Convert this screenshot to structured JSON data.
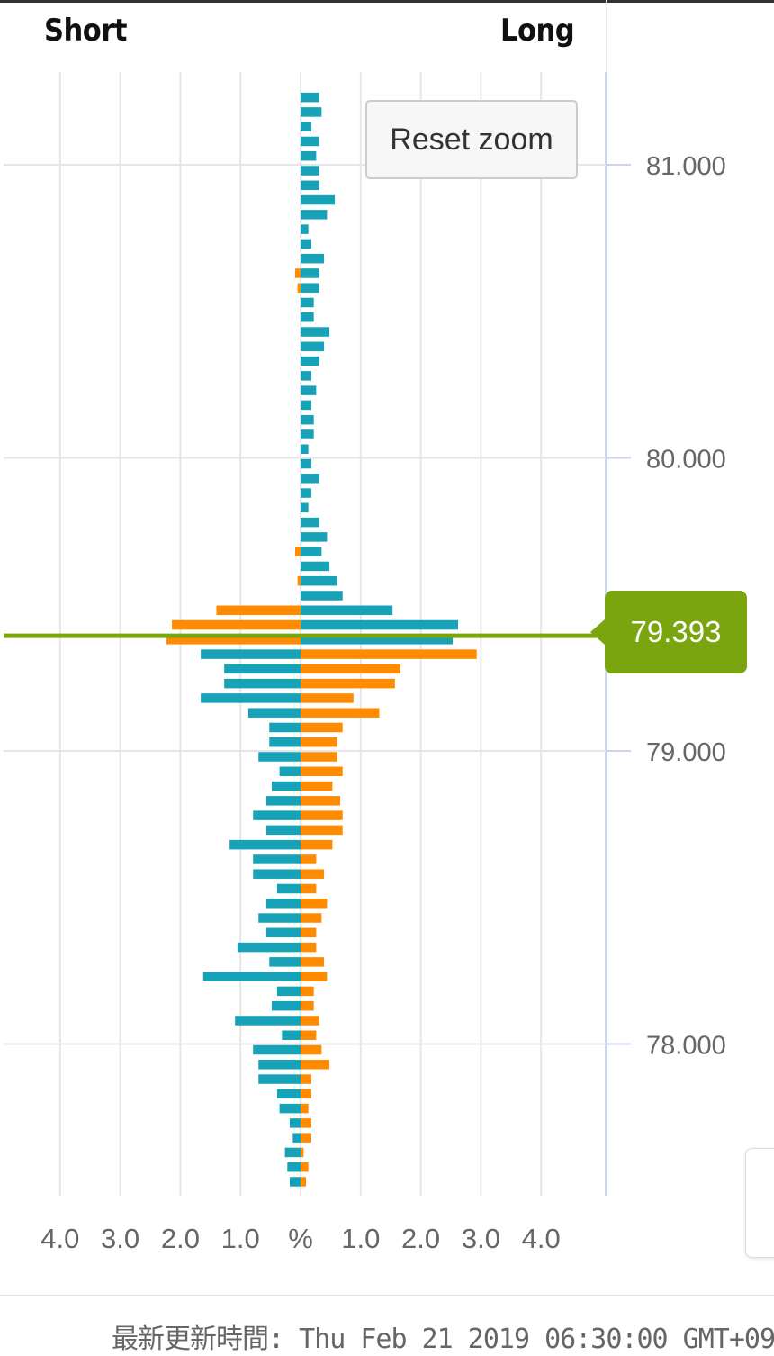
{
  "header": {
    "short_label": "Short",
    "long_label": "Long"
  },
  "reset_button": "Reset zoom",
  "current_price": "79.393",
  "footer": {
    "updated_label": "最新更新時間: Thu Feb 21 2019 06:30:00 GMT+09"
  },
  "colors": {
    "teal": "#17a2b8",
    "orange": "#ff8c00",
    "price_line": "#7aa50f"
  },
  "chart_data": {
    "type": "bar",
    "orientation": "horizontal-diverging",
    "y_axis_ticks": [
      "81.000",
      "80.000",
      "79.000",
      "78.000"
    ],
    "x_axis_ticks": [
      "4.0",
      "3.0",
      "2.0",
      "1.0",
      "%",
      "1.0",
      "2.0",
      "3.0",
      "4.0"
    ],
    "ylim": [
      77.46,
      81.28
    ],
    "xlim_percent": [
      -5.0,
      5.0
    ],
    "current_price_value": 79.393,
    "series_description": "Each row is a price level; left side = short %, right side = long %.",
    "rows": [
      {
        "price": 81.23,
        "short": 0.0,
        "long": 0.31,
        "short_color": "teal",
        "long_color": "teal"
      },
      {
        "price": 81.18,
        "short": 0.0,
        "long": 0.35,
        "short_color": "teal",
        "long_color": "teal"
      },
      {
        "price": 81.13,
        "short": 0.0,
        "long": 0.18,
        "short_color": "teal",
        "long_color": "teal"
      },
      {
        "price": 81.08,
        "short": 0.0,
        "long": 0.31,
        "short_color": "teal",
        "long_color": "teal"
      },
      {
        "price": 81.03,
        "short": 0.0,
        "long": 0.26,
        "short_color": "teal",
        "long_color": "teal"
      },
      {
        "price": 80.98,
        "short": 0.0,
        "long": 0.31,
        "short_color": "teal",
        "long_color": "teal"
      },
      {
        "price": 80.93,
        "short": 0.0,
        "long": 0.31,
        "short_color": "teal",
        "long_color": "teal"
      },
      {
        "price": 80.88,
        "short": 0.0,
        "long": 0.57,
        "short_color": "teal",
        "long_color": "teal"
      },
      {
        "price": 80.83,
        "short": 0.0,
        "long": 0.44,
        "short_color": "teal",
        "long_color": "teal"
      },
      {
        "price": 80.78,
        "short": 0.0,
        "long": 0.13,
        "short_color": "teal",
        "long_color": "teal"
      },
      {
        "price": 80.73,
        "short": 0.0,
        "long": 0.18,
        "short_color": "teal",
        "long_color": "teal"
      },
      {
        "price": 80.68,
        "short": 0.0,
        "long": 0.39,
        "short_color": "teal",
        "long_color": "teal"
      },
      {
        "price": 80.63,
        "short": 0.09,
        "long": 0.31,
        "short_color": "orange",
        "long_color": "teal"
      },
      {
        "price": 80.58,
        "short": 0.05,
        "long": 0.31,
        "short_color": "orange",
        "long_color": "teal"
      },
      {
        "price": 80.53,
        "short": 0.0,
        "long": 0.22,
        "short_color": "teal",
        "long_color": "teal"
      },
      {
        "price": 80.48,
        "short": 0.0,
        "long": 0.22,
        "short_color": "teal",
        "long_color": "teal"
      },
      {
        "price": 80.43,
        "short": 0.0,
        "long": 0.48,
        "short_color": "teal",
        "long_color": "teal"
      },
      {
        "price": 80.38,
        "short": 0.0,
        "long": 0.39,
        "short_color": "teal",
        "long_color": "teal"
      },
      {
        "price": 80.33,
        "short": 0.0,
        "long": 0.31,
        "short_color": "teal",
        "long_color": "teal"
      },
      {
        "price": 80.28,
        "short": 0.0,
        "long": 0.18,
        "short_color": "teal",
        "long_color": "teal"
      },
      {
        "price": 80.23,
        "short": 0.0,
        "long": 0.26,
        "short_color": "teal",
        "long_color": "teal"
      },
      {
        "price": 80.18,
        "short": 0.0,
        "long": 0.18,
        "short_color": "teal",
        "long_color": "teal"
      },
      {
        "price": 80.13,
        "short": 0.0,
        "long": 0.22,
        "short_color": "teal",
        "long_color": "teal"
      },
      {
        "price": 80.08,
        "short": 0.0,
        "long": 0.22,
        "short_color": "teal",
        "long_color": "teal"
      },
      {
        "price": 80.03,
        "short": 0.0,
        "long": 0.13,
        "short_color": "teal",
        "long_color": "teal"
      },
      {
        "price": 79.98,
        "short": 0.0,
        "long": 0.18,
        "short_color": "teal",
        "long_color": "teal"
      },
      {
        "price": 79.93,
        "short": 0.0,
        "long": 0.31,
        "short_color": "teal",
        "long_color": "teal"
      },
      {
        "price": 79.88,
        "short": 0.0,
        "long": 0.18,
        "short_color": "teal",
        "long_color": "teal"
      },
      {
        "price": 79.83,
        "short": 0.0,
        "long": 0.13,
        "short_color": "teal",
        "long_color": "teal"
      },
      {
        "price": 79.78,
        "short": 0.0,
        "long": 0.31,
        "short_color": "teal",
        "long_color": "teal"
      },
      {
        "price": 79.73,
        "short": 0.0,
        "long": 0.44,
        "short_color": "teal",
        "long_color": "teal"
      },
      {
        "price": 79.68,
        "short": 0.09,
        "long": 0.35,
        "short_color": "orange",
        "long_color": "teal"
      },
      {
        "price": 79.63,
        "short": 0.0,
        "long": 0.48,
        "short_color": "teal",
        "long_color": "teal"
      },
      {
        "price": 79.58,
        "short": 0.05,
        "long": 0.61,
        "short_color": "orange",
        "long_color": "teal"
      },
      {
        "price": 79.53,
        "short": 0.0,
        "long": 0.7,
        "short_color": "teal",
        "long_color": "teal"
      },
      {
        "price": 79.48,
        "short": 1.4,
        "long": 1.53,
        "short_color": "orange",
        "long_color": "teal"
      },
      {
        "price": 79.43,
        "short": 2.14,
        "long": 2.62,
        "short_color": "orange",
        "long_color": "teal"
      },
      {
        "price": 79.38,
        "short": 2.23,
        "long": 2.53,
        "short_color": "orange",
        "long_color": "teal"
      },
      {
        "price": 79.33,
        "short": 1.66,
        "long": 2.93,
        "short_color": "teal",
        "long_color": "orange"
      },
      {
        "price": 79.28,
        "short": 1.27,
        "long": 1.66,
        "short_color": "teal",
        "long_color": "orange"
      },
      {
        "price": 79.23,
        "short": 1.27,
        "long": 1.57,
        "short_color": "teal",
        "long_color": "orange"
      },
      {
        "price": 79.18,
        "short": 1.66,
        "long": 0.88,
        "short_color": "teal",
        "long_color": "orange"
      },
      {
        "price": 79.13,
        "short": 0.87,
        "long": 1.31,
        "short_color": "teal",
        "long_color": "orange"
      },
      {
        "price": 79.08,
        "short": 0.52,
        "long": 0.7,
        "short_color": "teal",
        "long_color": "orange"
      },
      {
        "price": 79.03,
        "short": 0.52,
        "long": 0.61,
        "short_color": "teal",
        "long_color": "orange"
      },
      {
        "price": 78.98,
        "short": 0.7,
        "long": 0.61,
        "short_color": "teal",
        "long_color": "orange"
      },
      {
        "price": 78.93,
        "short": 0.35,
        "long": 0.7,
        "short_color": "teal",
        "long_color": "orange"
      },
      {
        "price": 78.88,
        "short": 0.48,
        "long": 0.53,
        "short_color": "teal",
        "long_color": "orange"
      },
      {
        "price": 78.83,
        "short": 0.57,
        "long": 0.66,
        "short_color": "teal",
        "long_color": "orange"
      },
      {
        "price": 78.78,
        "short": 0.79,
        "long": 0.7,
        "short_color": "teal",
        "long_color": "orange"
      },
      {
        "price": 78.73,
        "short": 0.57,
        "long": 0.7,
        "short_color": "teal",
        "long_color": "orange"
      },
      {
        "price": 78.68,
        "short": 1.18,
        "long": 0.53,
        "short_color": "teal",
        "long_color": "orange"
      },
      {
        "price": 78.63,
        "short": 0.79,
        "long": 0.26,
        "short_color": "teal",
        "long_color": "orange"
      },
      {
        "price": 78.58,
        "short": 0.79,
        "long": 0.39,
        "short_color": "teal",
        "long_color": "orange"
      },
      {
        "price": 78.53,
        "short": 0.39,
        "long": 0.26,
        "short_color": "teal",
        "long_color": "orange"
      },
      {
        "price": 78.48,
        "short": 0.57,
        "long": 0.44,
        "short_color": "teal",
        "long_color": "orange"
      },
      {
        "price": 78.43,
        "short": 0.7,
        "long": 0.35,
        "short_color": "teal",
        "long_color": "orange"
      },
      {
        "price": 78.38,
        "short": 0.57,
        "long": 0.26,
        "short_color": "teal",
        "long_color": "orange"
      },
      {
        "price": 78.33,
        "short": 1.05,
        "long": 0.26,
        "short_color": "teal",
        "long_color": "orange"
      },
      {
        "price": 78.28,
        "short": 0.52,
        "long": 0.39,
        "short_color": "teal",
        "long_color": "orange"
      },
      {
        "price": 78.23,
        "short": 1.62,
        "long": 0.44,
        "short_color": "teal",
        "long_color": "orange"
      },
      {
        "price": 78.18,
        "short": 0.39,
        "long": 0.22,
        "short_color": "teal",
        "long_color": "orange"
      },
      {
        "price": 78.13,
        "short": 0.48,
        "long": 0.22,
        "short_color": "teal",
        "long_color": "orange"
      },
      {
        "price": 78.08,
        "short": 1.09,
        "long": 0.31,
        "short_color": "teal",
        "long_color": "orange"
      },
      {
        "price": 78.03,
        "short": 0.31,
        "long": 0.26,
        "short_color": "teal",
        "long_color": "orange"
      },
      {
        "price": 77.98,
        "short": 0.79,
        "long": 0.35,
        "short_color": "teal",
        "long_color": "orange"
      },
      {
        "price": 77.93,
        "short": 0.7,
        "long": 0.48,
        "short_color": "teal",
        "long_color": "orange"
      },
      {
        "price": 77.88,
        "short": 0.7,
        "long": 0.18,
        "short_color": "teal",
        "long_color": "orange"
      },
      {
        "price": 77.83,
        "short": 0.39,
        "long": 0.18,
        "short_color": "teal",
        "long_color": "orange"
      },
      {
        "price": 77.78,
        "short": 0.35,
        "long": 0.13,
        "short_color": "teal",
        "long_color": "orange"
      },
      {
        "price": 77.73,
        "short": 0.18,
        "long": 0.18,
        "short_color": "teal",
        "long_color": "orange"
      },
      {
        "price": 77.68,
        "short": 0.13,
        "long": 0.18,
        "short_color": "teal",
        "long_color": "orange"
      },
      {
        "price": 77.63,
        "short": 0.26,
        "long": 0.05,
        "short_color": "teal",
        "long_color": "orange"
      },
      {
        "price": 77.58,
        "short": 0.22,
        "long": 0.13,
        "short_color": "teal",
        "long_color": "orange"
      },
      {
        "price": 77.53,
        "short": 0.18,
        "long": 0.09,
        "short_color": "teal",
        "long_color": "orange"
      }
    ]
  }
}
